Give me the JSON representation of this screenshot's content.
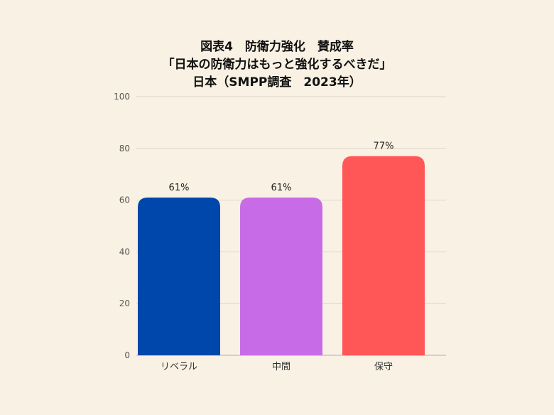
{
  "chart_data": {
    "type": "bar",
    "title": "図表4　防衛力強化　賛成率",
    "subtitle": "「日本の防衛力はもっと強化するべきだ」",
    "subtitle2": "日本（SMPP調査　2023年）",
    "xlabel": "",
    "ylabel": "",
    "categories": [
      "リベラル",
      "中間",
      "保守"
    ],
    "values": [
      61,
      61,
      77
    ],
    "data_labels": [
      "61%",
      "61%",
      "77%"
    ],
    "colors": [
      "#0047ab",
      "#c86be6",
      "#ff5757"
    ],
    "ylim": [
      0,
      100
    ],
    "yticks": [
      0,
      20,
      40,
      60,
      80,
      100
    ],
    "ytick_labels": [
      "0",
      "20",
      "40",
      "60",
      "80",
      "100"
    ],
    "grid": true,
    "legend": "none"
  }
}
